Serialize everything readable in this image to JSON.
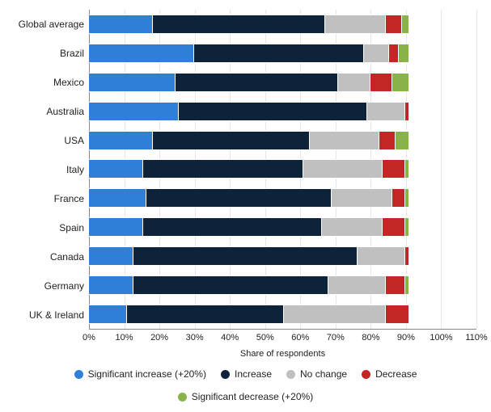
{
  "chart": {
    "type": "stacked-horizontal-bar",
    "x_axis": {
      "title": "Share of respondents",
      "min": 0,
      "max": 110,
      "tick_step": 10,
      "label_suffix": "%",
      "grid_color": "#e6e6e6",
      "axis_color": "#888888"
    },
    "background_color": "#ffffff",
    "label_fontsize": 12,
    "tick_fontsize": 11,
    "series": [
      {
        "key": "sig_inc",
        "label": "Significant increase (+20%)",
        "color": "#2f7ed8"
      },
      {
        "key": "inc",
        "label": "Increase",
        "color": "#0d233a"
      },
      {
        "key": "nochg",
        "label": "No change",
        "color": "#c0c0c0"
      },
      {
        "key": "dec",
        "label": "Decrease",
        "color": "#c42525"
      },
      {
        "key": "sig_dec",
        "label": "Significant decrease (+20%)",
        "color": "#88b34a"
      }
    ],
    "categories": [
      {
        "label": "Global average",
        "values": {
          "sig_inc": 20,
          "inc": 54,
          "nochg": 19,
          "dec": 5,
          "sig_dec": 2
        }
      },
      {
        "label": "Brazil",
        "values": {
          "sig_inc": 33,
          "inc": 53,
          "nochg": 8,
          "dec": 3,
          "sig_dec": 3
        }
      },
      {
        "label": "Mexico",
        "values": {
          "sig_inc": 27,
          "inc": 51,
          "nochg": 10,
          "dec": 7,
          "sig_dec": 5
        }
      },
      {
        "label": "Australia",
        "values": {
          "sig_inc": 28,
          "inc": 59,
          "nochg": 12,
          "dec": 1,
          "sig_dec": 0
        }
      },
      {
        "label": "USA",
        "values": {
          "sig_inc": 20,
          "inc": 49,
          "nochg": 22,
          "dec": 5,
          "sig_dec": 4
        }
      },
      {
        "label": "Italy",
        "values": {
          "sig_inc": 17,
          "inc": 50,
          "nochg": 25,
          "dec": 7,
          "sig_dec": 1
        }
      },
      {
        "label": "France",
        "values": {
          "sig_inc": 18,
          "inc": 58,
          "nochg": 19,
          "dec": 4,
          "sig_dec": 1
        }
      },
      {
        "label": "Spain",
        "values": {
          "sig_inc": 17,
          "inc": 56,
          "nochg": 19,
          "dec": 7,
          "sig_dec": 1
        }
      },
      {
        "label": "Canada",
        "values": {
          "sig_inc": 14,
          "inc": 70,
          "nochg": 15,
          "dec": 1,
          "sig_dec": 0
        }
      },
      {
        "label": "Germany",
        "values": {
          "sig_inc": 14,
          "inc": 61,
          "nochg": 18,
          "dec": 6,
          "sig_dec": 1
        }
      },
      {
        "label": "UK & Ireland",
        "values": {
          "sig_inc": 12,
          "inc": 49,
          "nochg": 32,
          "dec": 7,
          "sig_dec": 0
        }
      }
    ]
  }
}
